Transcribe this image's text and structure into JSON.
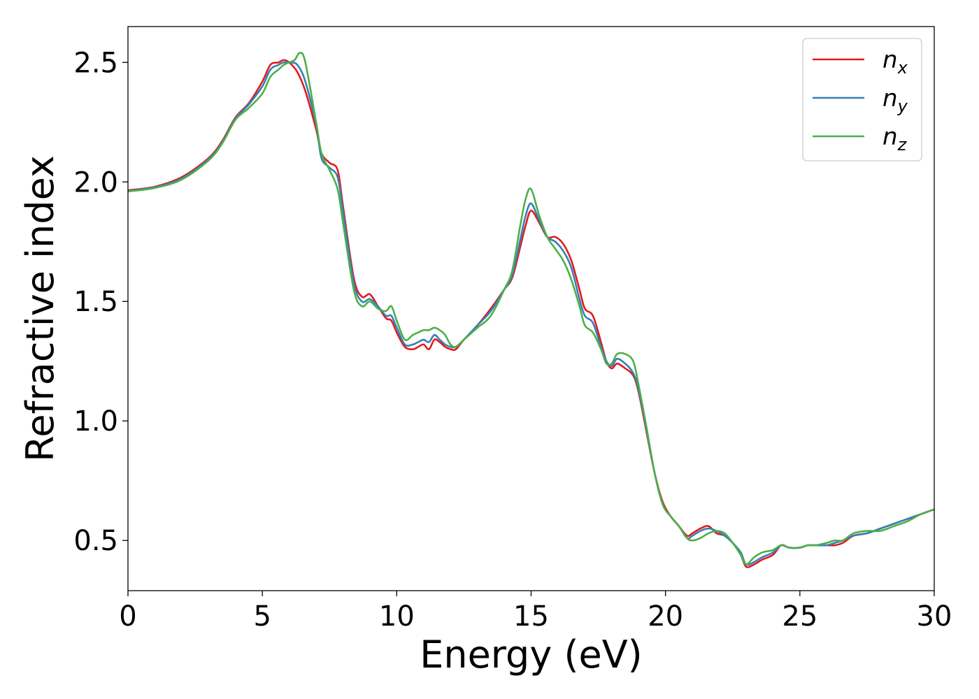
{
  "chart_data": {
    "type": "line",
    "xlabel": "Energy (eV)",
    "ylabel": "Refractive index",
    "xlim": [
      0,
      30
    ],
    "ylim": [
      0.29,
      2.65
    ],
    "xticks": [
      0,
      5,
      10,
      15,
      20,
      25,
      30
    ],
    "xtick_labels": [
      "0",
      "5",
      "10",
      "15",
      "20",
      "25",
      "30"
    ],
    "yticks": [
      0.5,
      1.0,
      1.5,
      2.0,
      2.5
    ],
    "ytick_labels": [
      "0.5",
      "1.0",
      "1.5",
      "2.0",
      "2.5"
    ],
    "grid": false,
    "legend_position": "top-right",
    "series": [
      {
        "name": "n",
        "subscript": "x",
        "color": "#e41a1c",
        "x": [
          0,
          1,
          2,
          3,
          3.5,
          4,
          4.5,
          5,
          5.3,
          5.6,
          5.8,
          6,
          6.3,
          6.6,
          7,
          7.2,
          7.5,
          7.8,
          8,
          8.4,
          8.7,
          9,
          9.3,
          9.6,
          9.8,
          10,
          10.3,
          10.6,
          10.8,
          11,
          11.2,
          11.4,
          11.6,
          11.8,
          12,
          12.2,
          12.5,
          13,
          13.5,
          14,
          14.3,
          14.6,
          14.8,
          15,
          15.3,
          15.6,
          15.9,
          16.2,
          16.5,
          16.8,
          17,
          17.3,
          17.6,
          17.8,
          18,
          18.2,
          18.5,
          18.8,
          19,
          19.3,
          19.6,
          19.9,
          20.2,
          20.5,
          20.8,
          21,
          21.3,
          21.6,
          21.9,
          22.2,
          22.5,
          22.8,
          23,
          23.3,
          23.6,
          24,
          24.3,
          24.6,
          25,
          25.3,
          25.6,
          26,
          26.3,
          26.6,
          27,
          27.5,
          28,
          28.5,
          29,
          29.5,
          30
        ],
        "y": [
          1.965,
          1.98,
          2.02,
          2.1,
          2.17,
          2.27,
          2.33,
          2.42,
          2.49,
          2.5,
          2.51,
          2.5,
          2.46,
          2.38,
          2.22,
          2.12,
          2.08,
          2.05,
          1.9,
          1.6,
          1.52,
          1.53,
          1.48,
          1.43,
          1.42,
          1.37,
          1.31,
          1.3,
          1.31,
          1.32,
          1.3,
          1.34,
          1.33,
          1.31,
          1.3,
          1.3,
          1.34,
          1.4,
          1.47,
          1.55,
          1.6,
          1.73,
          1.82,
          1.88,
          1.83,
          1.77,
          1.77,
          1.74,
          1.67,
          1.55,
          1.47,
          1.44,
          1.33,
          1.25,
          1.22,
          1.24,
          1.22,
          1.19,
          1.12,
          0.95,
          0.78,
          0.66,
          0.6,
          0.56,
          0.52,
          0.53,
          0.55,
          0.56,
          0.53,
          0.52,
          0.49,
          0.44,
          0.39,
          0.4,
          0.42,
          0.44,
          0.48,
          0.47,
          0.47,
          0.48,
          0.48,
          0.48,
          0.48,
          0.49,
          0.52,
          0.53,
          0.55,
          0.57,
          0.59,
          0.61,
          0.63
        ]
      },
      {
        "name": "n",
        "subscript": "y",
        "color": "#377eb8",
        "x": [
          0,
          1,
          2,
          3,
          3.5,
          4,
          4.5,
          5,
          5.3,
          5.6,
          5.8,
          6,
          6.3,
          6.6,
          7,
          7.2,
          7.5,
          7.8,
          8,
          8.4,
          8.7,
          9,
          9.3,
          9.6,
          9.8,
          10,
          10.3,
          10.6,
          10.8,
          11,
          11.2,
          11.4,
          11.6,
          11.8,
          12,
          12.2,
          12.5,
          13,
          13.5,
          14,
          14.3,
          14.6,
          14.8,
          15,
          15.3,
          15.6,
          15.9,
          16.2,
          16.5,
          16.8,
          17,
          17.3,
          17.6,
          17.8,
          18,
          18.2,
          18.5,
          18.8,
          19,
          19.3,
          19.6,
          19.9,
          20.2,
          20.5,
          20.8,
          21,
          21.3,
          21.6,
          21.9,
          22.2,
          22.5,
          22.8,
          23,
          23.3,
          23.6,
          24,
          24.3,
          24.6,
          25,
          25.3,
          25.6,
          26,
          26.3,
          26.6,
          27,
          27.5,
          28,
          28.5,
          29,
          29.5,
          30
        ],
        "y": [
          1.962,
          1.978,
          2.015,
          2.095,
          2.165,
          2.265,
          2.325,
          2.4,
          2.47,
          2.49,
          2.5,
          2.5,
          2.49,
          2.42,
          2.24,
          2.1,
          2.06,
          2.02,
          1.88,
          1.58,
          1.5,
          1.51,
          1.48,
          1.44,
          1.44,
          1.39,
          1.32,
          1.32,
          1.33,
          1.34,
          1.33,
          1.36,
          1.34,
          1.32,
          1.31,
          1.31,
          1.34,
          1.4,
          1.46,
          1.55,
          1.61,
          1.76,
          1.86,
          1.91,
          1.84,
          1.77,
          1.75,
          1.71,
          1.64,
          1.51,
          1.44,
          1.41,
          1.31,
          1.25,
          1.23,
          1.26,
          1.24,
          1.2,
          1.13,
          0.96,
          0.78,
          0.65,
          0.6,
          0.56,
          0.51,
          0.52,
          0.54,
          0.55,
          0.54,
          0.52,
          0.49,
          0.45,
          0.4,
          0.41,
          0.43,
          0.45,
          0.48,
          0.47,
          0.47,
          0.48,
          0.48,
          0.48,
          0.49,
          0.5,
          0.52,
          0.53,
          0.55,
          0.57,
          0.59,
          0.61,
          0.63
        ]
      },
      {
        "name": "n",
        "subscript": "z",
        "color": "#4daf4a",
        "x": [
          0,
          1,
          2,
          3,
          3.5,
          4,
          4.5,
          5,
          5.3,
          5.6,
          5.8,
          6,
          6.2,
          6.4,
          6.6,
          7,
          7.2,
          7.5,
          7.8,
          8,
          8.4,
          8.7,
          9,
          9.3,
          9.6,
          9.8,
          10,
          10.3,
          10.6,
          10.8,
          11,
          11.2,
          11.4,
          11.6,
          11.8,
          12,
          12.2,
          12.5,
          13,
          13.5,
          14,
          14.3,
          14.6,
          14.8,
          15,
          15.3,
          15.6,
          15.9,
          16.2,
          16.5,
          16.8,
          17,
          17.3,
          17.6,
          17.8,
          18,
          18.2,
          18.5,
          18.8,
          19,
          19.3,
          19.6,
          19.9,
          20.2,
          20.5,
          20.8,
          21,
          21.3,
          21.6,
          21.9,
          22.2,
          22.5,
          22.8,
          23,
          23.3,
          23.6,
          24,
          24.3,
          24.6,
          25,
          25.3,
          25.6,
          26,
          26.3,
          26.6,
          27,
          27.5,
          28,
          28.5,
          29,
          29.5,
          30
        ],
        "y": [
          1.96,
          1.975,
          2.01,
          2.09,
          2.16,
          2.26,
          2.31,
          2.37,
          2.44,
          2.47,
          2.49,
          2.5,
          2.51,
          2.54,
          2.5,
          2.25,
          2.12,
          2.05,
          1.97,
          1.83,
          1.55,
          1.48,
          1.5,
          1.47,
          1.46,
          1.48,
          1.42,
          1.34,
          1.36,
          1.37,
          1.38,
          1.38,
          1.39,
          1.38,
          1.36,
          1.32,
          1.31,
          1.34,
          1.39,
          1.44,
          1.55,
          1.63,
          1.82,
          1.93,
          1.97,
          1.86,
          1.77,
          1.72,
          1.67,
          1.59,
          1.48,
          1.4,
          1.37,
          1.3,
          1.24,
          1.24,
          1.28,
          1.28,
          1.25,
          1.15,
          0.97,
          0.78,
          0.65,
          0.6,
          0.56,
          0.51,
          0.5,
          0.51,
          0.53,
          0.54,
          0.53,
          0.49,
          0.44,
          0.4,
          0.43,
          0.45,
          0.46,
          0.48,
          0.47,
          0.47,
          0.48,
          0.48,
          0.49,
          0.5,
          0.5,
          0.53,
          0.54,
          0.54,
          0.56,
          0.58,
          0.61,
          0.63
        ]
      }
    ]
  }
}
